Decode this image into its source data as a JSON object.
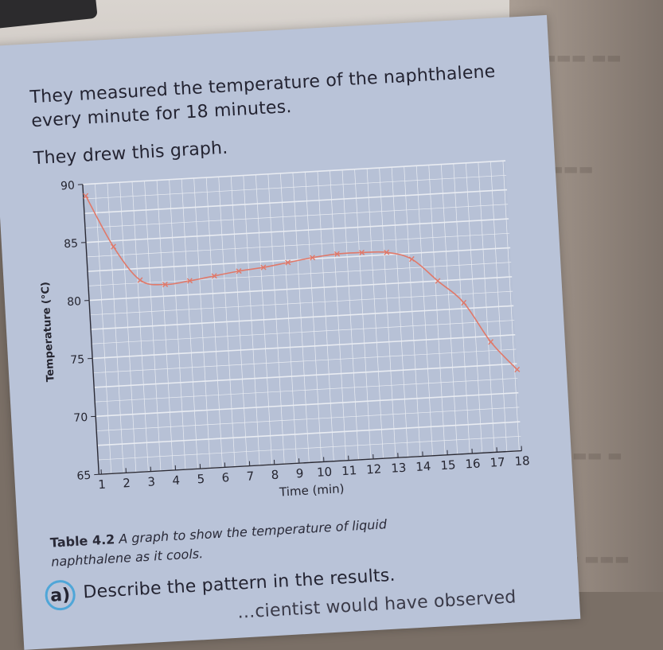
{
  "intro": {
    "line1": "They measured the temperature of the naphthalene",
    "line2": "every minute for 18 minutes.",
    "line3": "They drew this graph."
  },
  "caption": {
    "label": "Table 4.2",
    "text1": "A graph to show the temperature of liquid",
    "text2": "naphthalene as it cools."
  },
  "question": {
    "letter": "a)",
    "text": "Describe the pattern in the results.",
    "next_partial": "…cientist would have observed"
  },
  "colors": {
    "page": "#b9c3d8",
    "grid": "#f2f2f2",
    "curve": "#e0796a",
    "badge": "#4fa6d8"
  },
  "chart_data": {
    "type": "line",
    "xlabel": "Time (min)",
    "ylabel": "Temperature (°C)",
    "xlim": [
      0.9,
      18
    ],
    "ylim": [
      65,
      90
    ],
    "x_ticks": [
      1,
      2,
      3,
      4,
      5,
      6,
      7,
      8,
      9,
      10,
      11,
      12,
      13,
      14,
      15,
      16,
      17,
      18
    ],
    "y_ticks": [
      65,
      70,
      75,
      80,
      85,
      90
    ],
    "grid": true,
    "series": [
      {
        "x": [
          1,
          2,
          3,
          4,
          5,
          6,
          7,
          8,
          9,
          10,
          11,
          12,
          13,
          14,
          15,
          16,
          17,
          18
        ],
        "values": [
          89,
          84.5,
          81.5,
          81,
          81.2,
          81.5,
          81.8,
          82,
          82.3,
          82.6,
          82.8,
          82.8,
          82.7,
          82,
          80,
          78,
          74.5,
          72
        ]
      }
    ]
  }
}
